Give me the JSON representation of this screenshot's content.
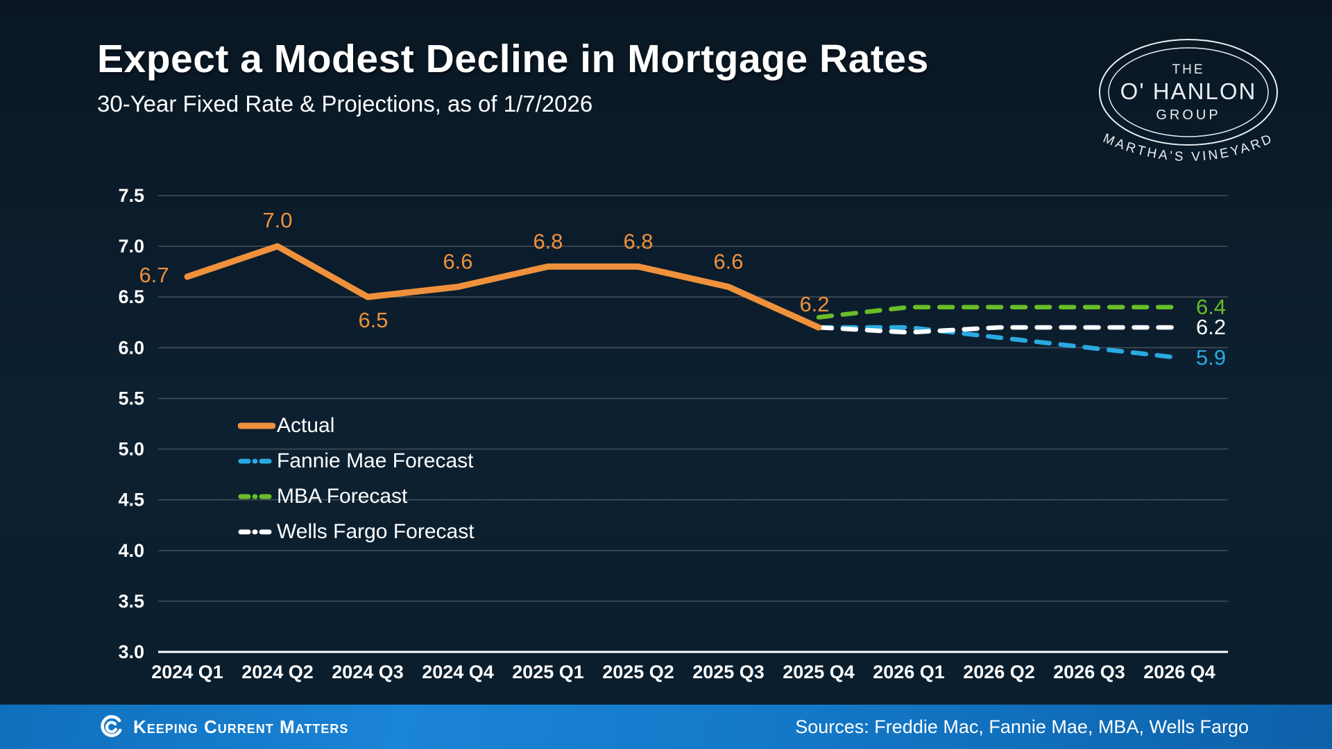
{
  "header": {
    "title": "Expect a Modest Decline in Mortgage Rates",
    "subtitle": "30-Year Fixed Rate & Projections, as of 1/7/2026"
  },
  "logo": {
    "line1": "THE",
    "line2": "O' HANLON",
    "line3": "GROUP",
    "arc_text": "MARTHA'S VINEYARD"
  },
  "footer": {
    "brand": "Keeping Current Matters",
    "sources": "Sources: Freddie Mac, Fannie Mae, MBA, Wells Fargo"
  },
  "colors": {
    "background_top": "#0a1723",
    "background_bottom": "#0b1e2c",
    "actual_orange": "#ef913c",
    "fannie_blue": "#29aae1",
    "mba_green": "#69be28",
    "wells_white": "#ffffff",
    "gridline": "#46505a",
    "axis_line": "#ffffff",
    "footer_blue": "#1377c6"
  },
  "chart_data": {
    "type": "line",
    "title": "Expect a Modest Decline in Mortgage Rates",
    "subtitle": "30-Year Fixed Rate & Projections, as of 1/7/2026",
    "xlabel": "",
    "ylabel": "",
    "ylim": [
      3.0,
      7.5
    ],
    "ytick_step": 0.5,
    "grid": true,
    "legend_position": "left-middle",
    "categories": [
      "2024 Q1",
      "2024 Q2",
      "2024 Q3",
      "2024 Q4",
      "2025 Q1",
      "2025 Q2",
      "2025 Q3",
      "2025 Q4",
      "2026 Q1",
      "2026 Q2",
      "2026 Q3",
      "2026 Q4"
    ],
    "series": [
      {
        "name": "Actual",
        "color": "#ef913c",
        "line_style": "solid",
        "show_point_labels": true,
        "values": [
          6.7,
          7.0,
          6.5,
          6.6,
          6.8,
          6.8,
          6.6,
          6.2,
          null,
          null,
          null,
          null
        ]
      },
      {
        "name": "Fannie Mae Forecast",
        "color": "#29aae1",
        "line_style": "dashed",
        "show_point_labels": false,
        "end_label": "5.9",
        "values": [
          null,
          null,
          null,
          null,
          null,
          null,
          null,
          6.2,
          6.2,
          6.1,
          6.0,
          5.9
        ]
      },
      {
        "name": "MBA Forecast",
        "color": "#69be28",
        "line_style": "dashed",
        "show_point_labels": false,
        "end_label": "6.4",
        "values": [
          null,
          null,
          null,
          null,
          null,
          null,
          null,
          6.3,
          6.4,
          6.4,
          6.4,
          6.4
        ]
      },
      {
        "name": "Wells Fargo Forecast",
        "color": "#ffffff",
        "line_style": "dashed",
        "show_point_labels": false,
        "end_label": "6.2",
        "values": [
          null,
          null,
          null,
          null,
          null,
          null,
          null,
          6.2,
          6.15,
          6.2,
          6.2,
          6.2
        ]
      }
    ]
  }
}
